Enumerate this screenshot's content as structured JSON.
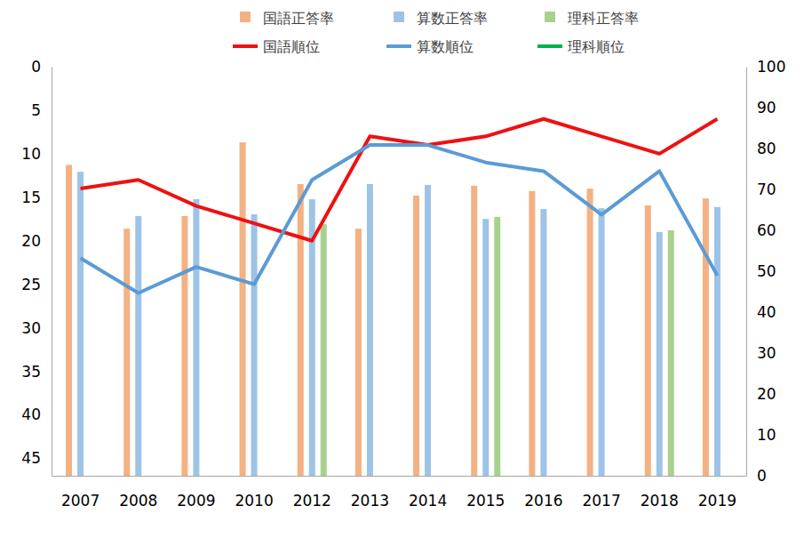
{
  "chart_data": {
    "type": "bar",
    "categories": [
      "2007",
      "2008",
      "2009",
      "2010",
      "2012",
      "2013",
      "2014",
      "2015",
      "2016",
      "2017",
      "2018",
      "2019"
    ],
    "series": [
      {
        "name": "国語正答率",
        "type": "bar",
        "axis": "y2",
        "color": "#f4b183",
        "values": [
          76,
          60.4,
          63.5,
          81.5,
          71.3,
          60.4,
          68.5,
          70.9,
          69.6,
          70.2,
          66.1,
          67.8
        ]
      },
      {
        "name": "算数正答率",
        "type": "bar",
        "axis": "y2",
        "color": "#9dc3e6",
        "values": [
          74.3,
          63.5,
          67.6,
          63.9,
          67.6,
          71.3,
          71.1,
          62.8,
          65.2,
          65.4,
          59.6,
          65.7
        ]
      },
      {
        "name": "理科正答率",
        "type": "bar",
        "axis": "y2",
        "color": "#a9d18e",
        "values": [
          null,
          null,
          null,
          null,
          61.5,
          null,
          null,
          63.3,
          null,
          null,
          60,
          null
        ]
      },
      {
        "name": "国語順位",
        "type": "line",
        "color": "#ee1111",
        "values": [
          14,
          13,
          16,
          18,
          20,
          8,
          9,
          8,
          6,
          8,
          10,
          6
        ]
      },
      {
        "name": "算数順位",
        "type": "line",
        "color": "#5b9bd5",
        "values": [
          22,
          26,
          23,
          25,
          13,
          9,
          9,
          11,
          12,
          17,
          12,
          24
        ]
      },
      {
        "name": "理科順位",
        "type": "line",
        "color": "#00b050",
        "values": [
          null,
          null,
          null,
          null,
          null,
          null,
          null,
          null,
          null,
          null,
          null,
          null
        ]
      }
    ],
    "ylim": [
      47,
      0
    ],
    "yticks": [
      0,
      5,
      10,
      15,
      20,
      25,
      30,
      35,
      40,
      45
    ],
    "y2lim": [
      0,
      100
    ],
    "y2ticks": [
      0,
      10,
      20,
      30,
      40,
      50,
      60,
      70,
      80,
      90,
      100
    ],
    "grid": false
  }
}
